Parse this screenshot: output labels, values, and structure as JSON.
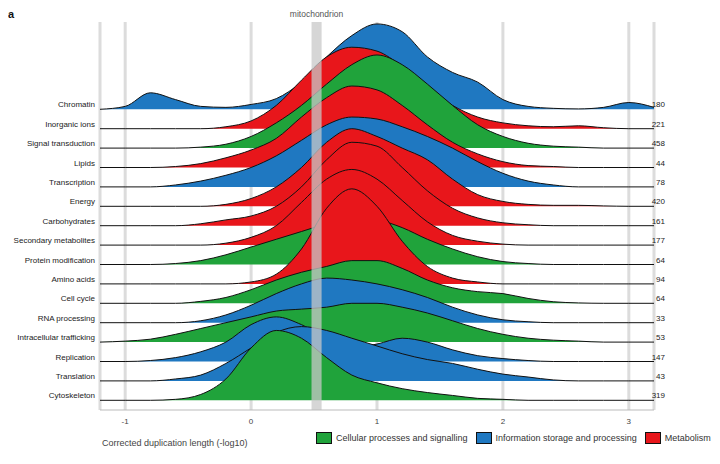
{
  "chart_data": {
    "type": "ridgeline",
    "title": "a",
    "x_label": "Corrected duplication length (-log10)",
    "xlim": [
      -1.2,
      3.2
    ],
    "xticks": [
      -1,
      0,
      1,
      2,
      3
    ],
    "grid": true,
    "legend": "bottom",
    "annotations": [
      {
        "label": "mitochondrion",
        "x": 0.52
      }
    ],
    "groups": [
      {
        "name": "Cellular processes and signalling",
        "color": "#20a33b"
      },
      {
        "name": "Information storage and processing",
        "color": "#1f78c1"
      },
      {
        "name": "Metabolism",
        "color": "#e8161b"
      }
    ],
    "x": [
      -1.2,
      -1,
      -0.8,
      -0.6,
      -0.4,
      -0.2,
      0,
      0.2,
      0.4,
      0.6,
      0.8,
      1,
      1.2,
      1.4,
      1.6,
      1.8,
      2,
      2.2,
      2.4,
      2.6,
      2.8,
      3,
      3.2
    ],
    "series": [
      {
        "name": "Chromatin",
        "group": "Information storage and processing",
        "color": "#1f78c1",
        "count": 180,
        "values": [
          0,
          0.15,
          0.85,
          0.5,
          0.15,
          0.1,
          0.25,
          0.55,
          1.4,
          2.7,
          3.8,
          4.4,
          4.0,
          2.7,
          1.9,
          1.4,
          0.5,
          0.15,
          0.05,
          0.02,
          0.1,
          0.35,
          0.1
        ]
      },
      {
        "name": "Inorganic ions",
        "group": "Metabolism",
        "color": "#e8161b",
        "count": 221,
        "values": [
          0,
          0,
          0,
          0,
          0,
          0.1,
          0.4,
          1.2,
          2.5,
          3.7,
          4.2,
          4.0,
          3.2,
          2.1,
          1.2,
          0.6,
          0.3,
          0.15,
          0.1,
          0.15,
          0.05,
          0,
          0
        ]
      },
      {
        "name": "Signal transduction",
        "group": "Cellular processes and signalling",
        "color": "#20a33b",
        "count": 458,
        "values": [
          0,
          0,
          0,
          0,
          0.05,
          0.2,
          0.6,
          1.3,
          2.2,
          3.3,
          4.3,
          4.8,
          4.3,
          3.3,
          2.2,
          1.2,
          0.6,
          0.25,
          0.1,
          0.05,
          0,
          0,
          0
        ]
      },
      {
        "name": "Lipids",
        "group": "Metabolism",
        "color": "#e8161b",
        "count": 44,
        "values": [
          0,
          0,
          0,
          0.05,
          0.2,
          0.5,
          0.9,
          1.5,
          2.6,
          3.6,
          4.2,
          4.0,
          3.2,
          2.2,
          1.3,
          0.7,
          0.3,
          0.1,
          0.05,
          0,
          0,
          0,
          0
        ]
      },
      {
        "name": "Transcription",
        "group": "Information storage and processing",
        "color": "#1f78c1",
        "count": 78,
        "values": [
          0,
          0,
          0,
          0.1,
          0.3,
          0.6,
          1.0,
          1.6,
          2.4,
          3.2,
          3.6,
          3.5,
          3.1,
          2.6,
          2.0,
          1.3,
          0.7,
          0.3,
          0.1,
          0,
          0,
          0,
          0
        ]
      },
      {
        "name": "Energy",
        "group": "Metabolism",
        "color": "#e8161b",
        "count": 420,
        "values": [
          0,
          0,
          0,
          0,
          0,
          0.1,
          0.4,
          1.0,
          2.0,
          3.3,
          4.0,
          3.6,
          3.0,
          2.4,
          1.4,
          0.6,
          0.25,
          0.1,
          0.05,
          0.05,
          0.02,
          0,
          0
        ]
      },
      {
        "name": "Carbohydrates",
        "group": "Metabolism",
        "color": "#e8161b",
        "count": 161,
        "values": [
          0,
          0,
          0,
          0,
          0.1,
          0.3,
          0.5,
          1.0,
          2.0,
          3.4,
          4.3,
          4.1,
          3.0,
          1.8,
          0.9,
          0.4,
          0.15,
          0.05,
          0,
          0,
          0,
          0,
          0
        ]
      },
      {
        "name": "Secondary metabolites",
        "group": "Metabolism",
        "color": "#e8161b",
        "count": 177,
        "values": [
          0,
          0,
          0,
          0,
          0,
          0.1,
          0.4,
          1.0,
          2.2,
          3.4,
          3.9,
          3.4,
          2.3,
          1.2,
          0.5,
          0.2,
          0.05,
          0,
          0,
          0,
          0,
          0,
          0
        ]
      },
      {
        "name": "Protein modification",
        "group": "Cellular processes and signalling",
        "color": "#20a33b",
        "count": 64,
        "values": [
          0,
          0,
          0,
          0.05,
          0.2,
          0.5,
          0.9,
          1.3,
          1.7,
          2.1,
          2.4,
          2.3,
          1.9,
          1.3,
          0.8,
          0.4,
          0.15,
          0.05,
          0,
          0,
          0,
          0,
          0
        ]
      },
      {
        "name": "Amino acids",
        "group": "Metabolism",
        "color": "#e8161b",
        "count": 94,
        "values": [
          0,
          0,
          0,
          0,
          0,
          0,
          0.1,
          0.5,
          1.8,
          3.9,
          4.9,
          4.0,
          2.2,
          0.9,
          0.3,
          0.1,
          0,
          0,
          0,
          0,
          0,
          0,
          0
        ]
      },
      {
        "name": "Cell cycle",
        "group": "Cellular processes and signalling",
        "color": "#20a33b",
        "count": 64,
        "values": [
          0,
          0,
          0,
          0,
          0.1,
          0.3,
          0.7,
          1.2,
          1.6,
          1.9,
          2.2,
          2.2,
          1.8,
          1.2,
          0.8,
          0.6,
          0.5,
          0.25,
          0.08,
          0.02,
          0,
          0,
          0
        ]
      },
      {
        "name": "RNA processing",
        "group": "Information storage and processing",
        "color": "#1f78c1",
        "count": 33,
        "values": [
          0,
          0,
          0,
          0,
          0.1,
          0.4,
          0.9,
          1.5,
          2.0,
          2.3,
          2.2,
          2.0,
          1.7,
          1.3,
          0.8,
          0.4,
          0.15,
          0.05,
          0,
          0,
          0,
          0,
          0
        ]
      },
      {
        "name": "Intracellular trafficking",
        "group": "Cellular processes and signalling",
        "color": "#20a33b",
        "count": 53,
        "values": [
          0,
          0.05,
          0.15,
          0.4,
          0.7,
          1.0,
          1.3,
          1.6,
          1.7,
          1.8,
          2.0,
          2.0,
          1.8,
          1.5,
          1.1,
          0.7,
          0.4,
          0.2,
          0.1,
          0.05,
          0,
          0,
          0
        ]
      },
      {
        "name": "Replication",
        "group": "Information storage and processing",
        "color": "#1f78c1",
        "count": 147,
        "values": [
          0,
          0,
          0.05,
          0.2,
          0.5,
          1.0,
          1.9,
          2.3,
          1.9,
          1.2,
          0.7,
          0.9,
          1.2,
          1.0,
          0.6,
          0.3,
          0.15,
          0.05,
          0,
          0,
          0,
          0,
          0
        ]
      },
      {
        "name": "Translation",
        "group": "Information storage and processing",
        "color": "#1f78c1",
        "count": 43,
        "values": [
          0,
          0,
          0,
          0.1,
          0.3,
          0.9,
          1.7,
          2.5,
          2.8,
          2.6,
          2.2,
          1.8,
          1.4,
          1.1,
          0.9,
          0.6,
          0.35,
          0.2,
          0.05,
          0,
          0,
          0,
          0
        ]
      },
      {
        "name": "Cytoskeleton",
        "group": "Cellular processes and signalling",
        "color": "#20a33b",
        "count": 319,
        "values": [
          0,
          0,
          0,
          0.05,
          0.3,
          1.1,
          2.7,
          3.6,
          3.2,
          2.2,
          1.3,
          0.9,
          0.6,
          0.4,
          0.25,
          0.1,
          0.05,
          0,
          0,
          0,
          0,
          0,
          0
        ]
      }
    ]
  }
}
